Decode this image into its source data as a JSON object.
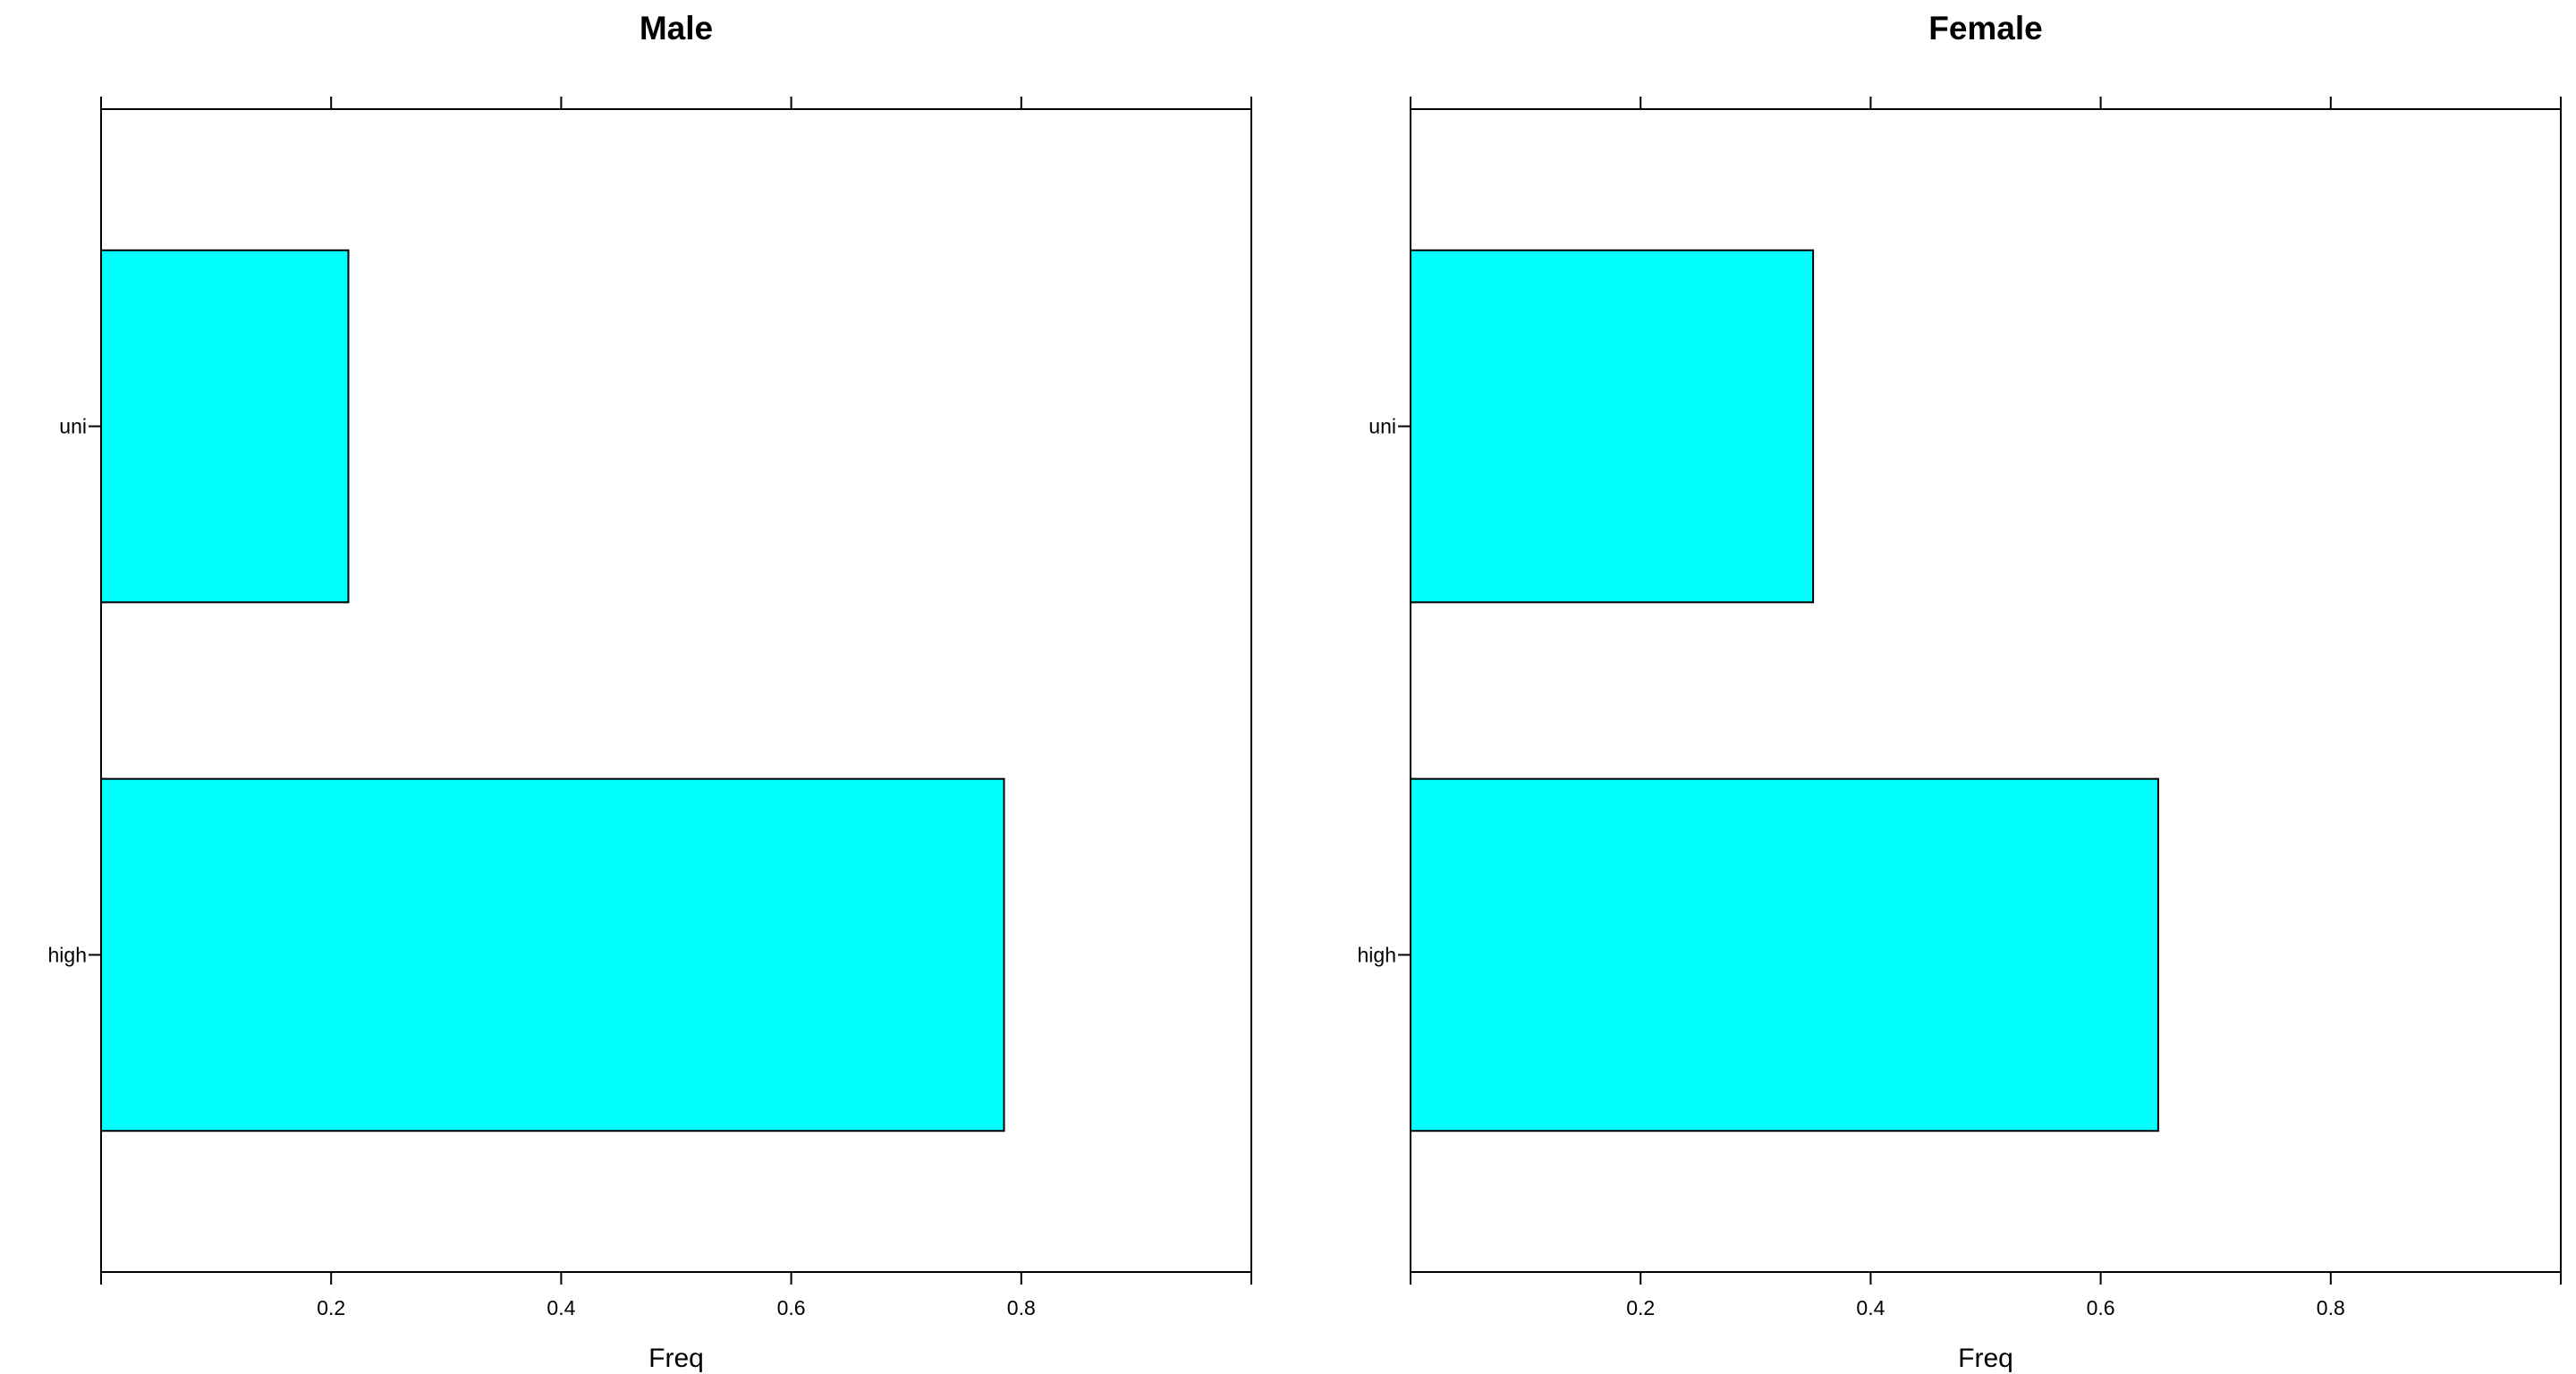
{
  "chart_data": [
    {
      "type": "bar",
      "orientation": "horizontal",
      "title": "Male",
      "xlabel": "Freq",
      "ylabel": "",
      "categories": [
        "high",
        "uni"
      ],
      "values": [
        0.785,
        0.215
      ],
      "xlim": [
        0,
        1
      ],
      "x_ticks": [
        0.2,
        0.4,
        0.6,
        0.8
      ],
      "x_tick_labels": [
        "0.2",
        "0.4",
        "0.6",
        "0.8"
      ],
      "bar_color": "#00FFFF",
      "grid": false,
      "legend": "none"
    },
    {
      "type": "bar",
      "orientation": "horizontal",
      "title": "Female",
      "xlabel": "Freq",
      "ylabel": "",
      "categories": [
        "high",
        "uni"
      ],
      "values": [
        0.65,
        0.35
      ],
      "xlim": [
        0,
        1
      ],
      "x_ticks": [
        0.2,
        0.4,
        0.6,
        0.8
      ],
      "x_tick_labels": [
        "0.2",
        "0.4",
        "0.6",
        "0.8"
      ],
      "bar_color": "#00FFFF",
      "grid": false,
      "legend": "none"
    }
  ]
}
